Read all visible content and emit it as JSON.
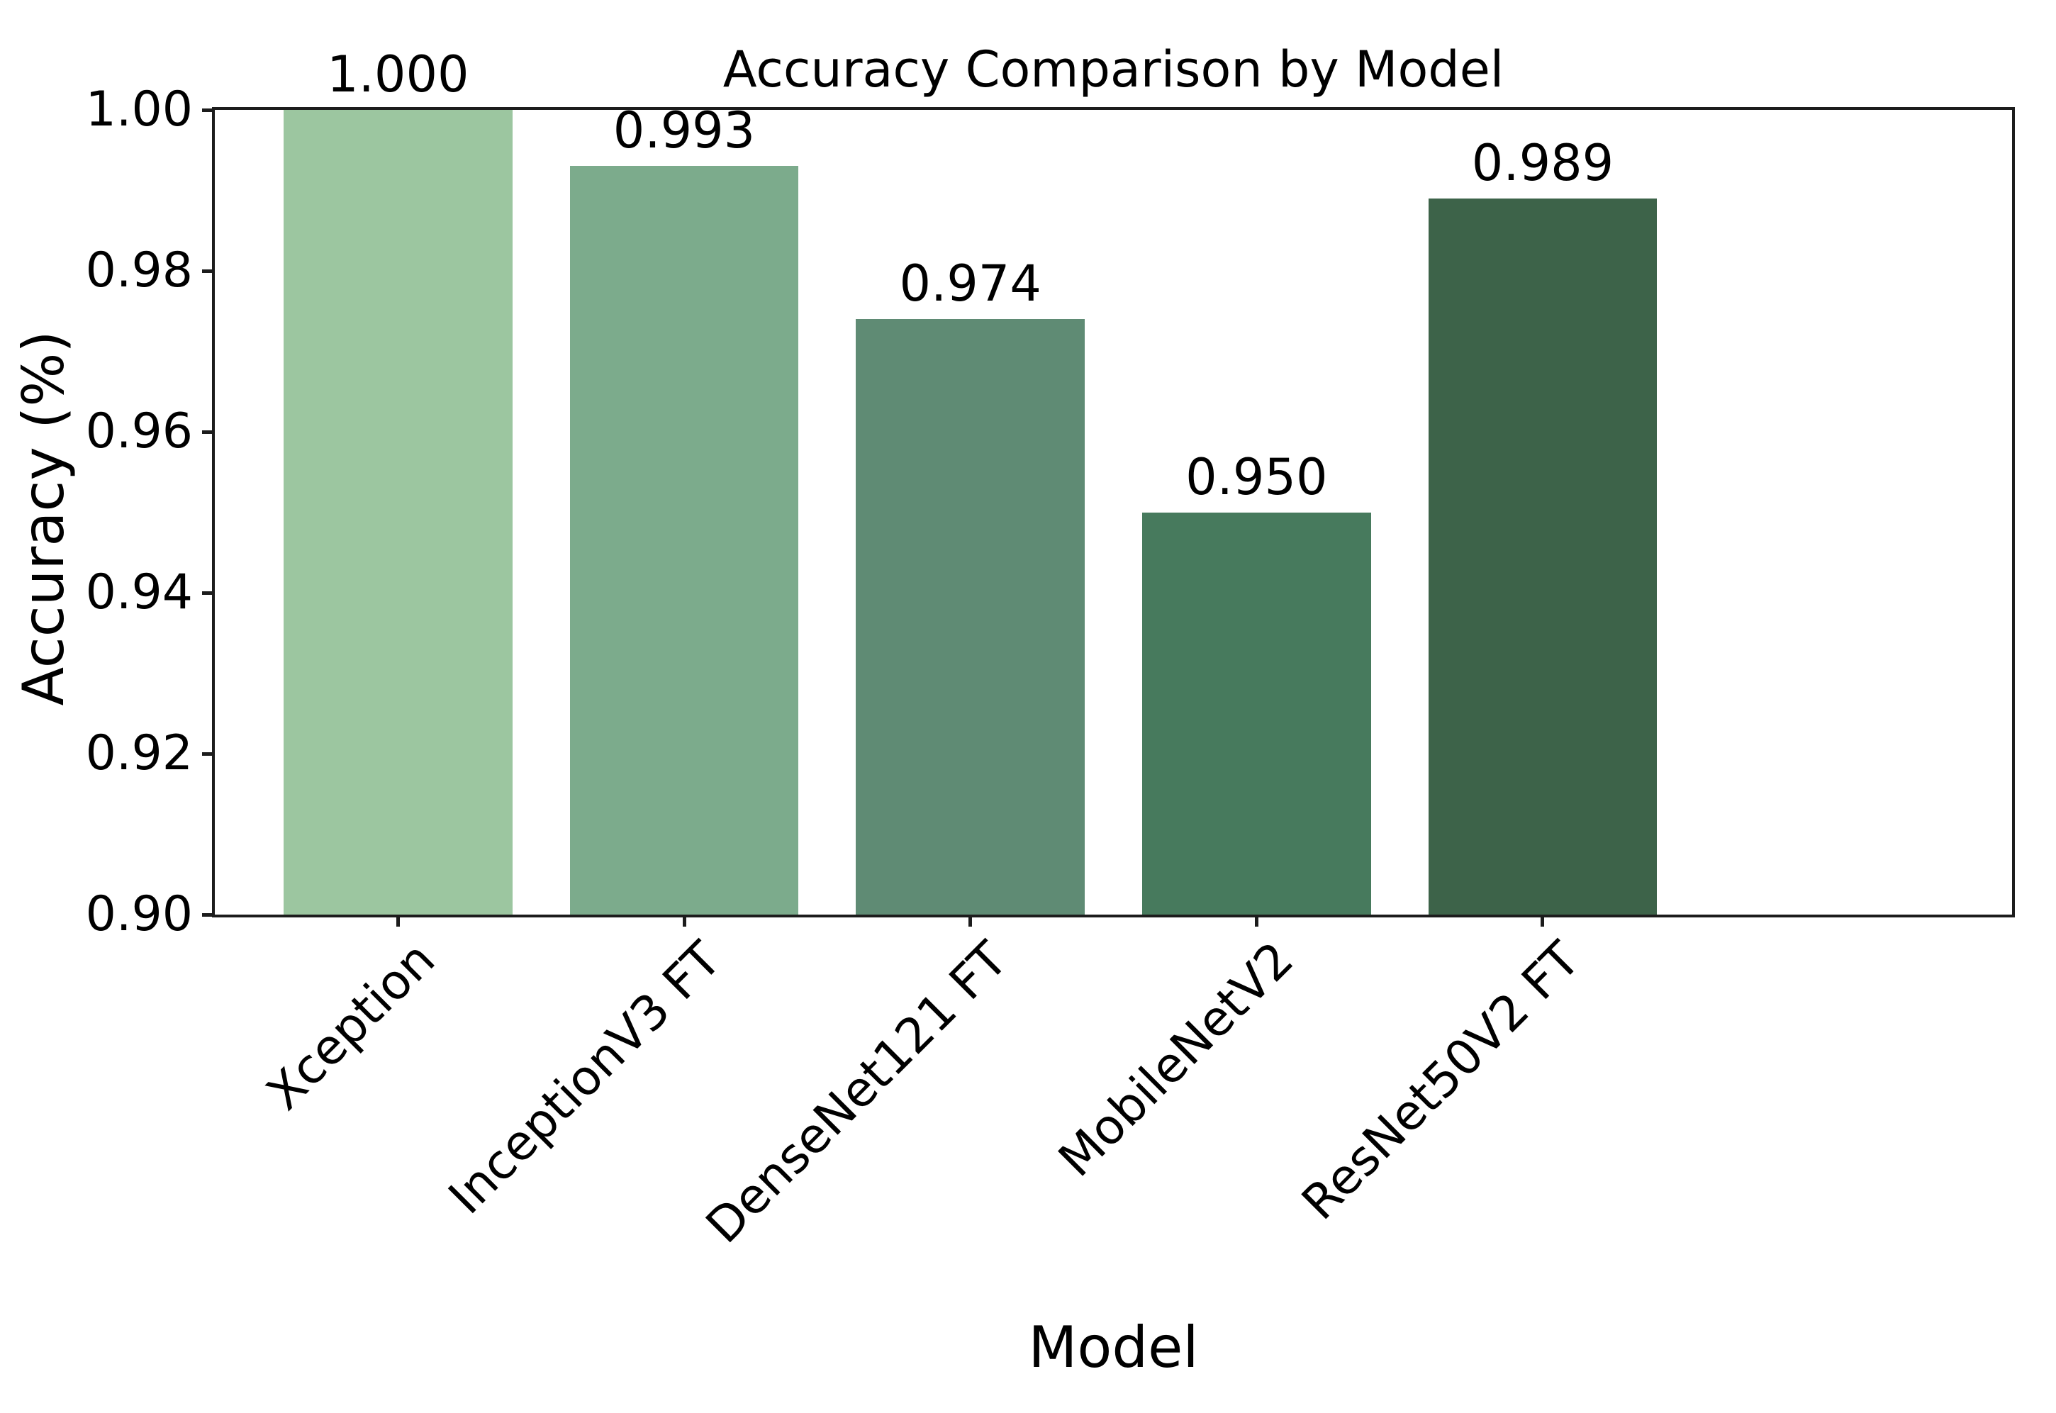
{
  "chart_data": {
    "type": "bar",
    "title": "Accuracy Comparison by Model",
    "xlabel": "Model",
    "ylabel": "Accuracy (%)",
    "categories": [
      "Xception",
      "InceptionV3 FT",
      "DenseNet121 FT",
      "MobileNetV2",
      "ResNet50V2 FT"
    ],
    "values": [
      1.0,
      0.993,
      0.974,
      0.95,
      0.989
    ],
    "value_labels": [
      "1.000",
      "0.993",
      "0.974",
      "0.950",
      "0.989"
    ],
    "bar_colors": [
      "#9cc6a0",
      "#7cab8c",
      "#5f8b74",
      "#477a5d",
      "#3d6349"
    ],
    "ylim": [
      0.9,
      1.0
    ],
    "yticks": [
      "1.00",
      "0.98",
      "0.96",
      "0.94",
      "0.92",
      "0.90"
    ],
    "ytick_values": [
      1.0,
      0.98,
      0.96,
      0.94,
      0.92,
      0.9
    ],
    "grid": false,
    "legend": null,
    "xtick_rotation_deg": 45,
    "spine_color": "#1c1c1c",
    "background_color": "#ffffff"
  }
}
